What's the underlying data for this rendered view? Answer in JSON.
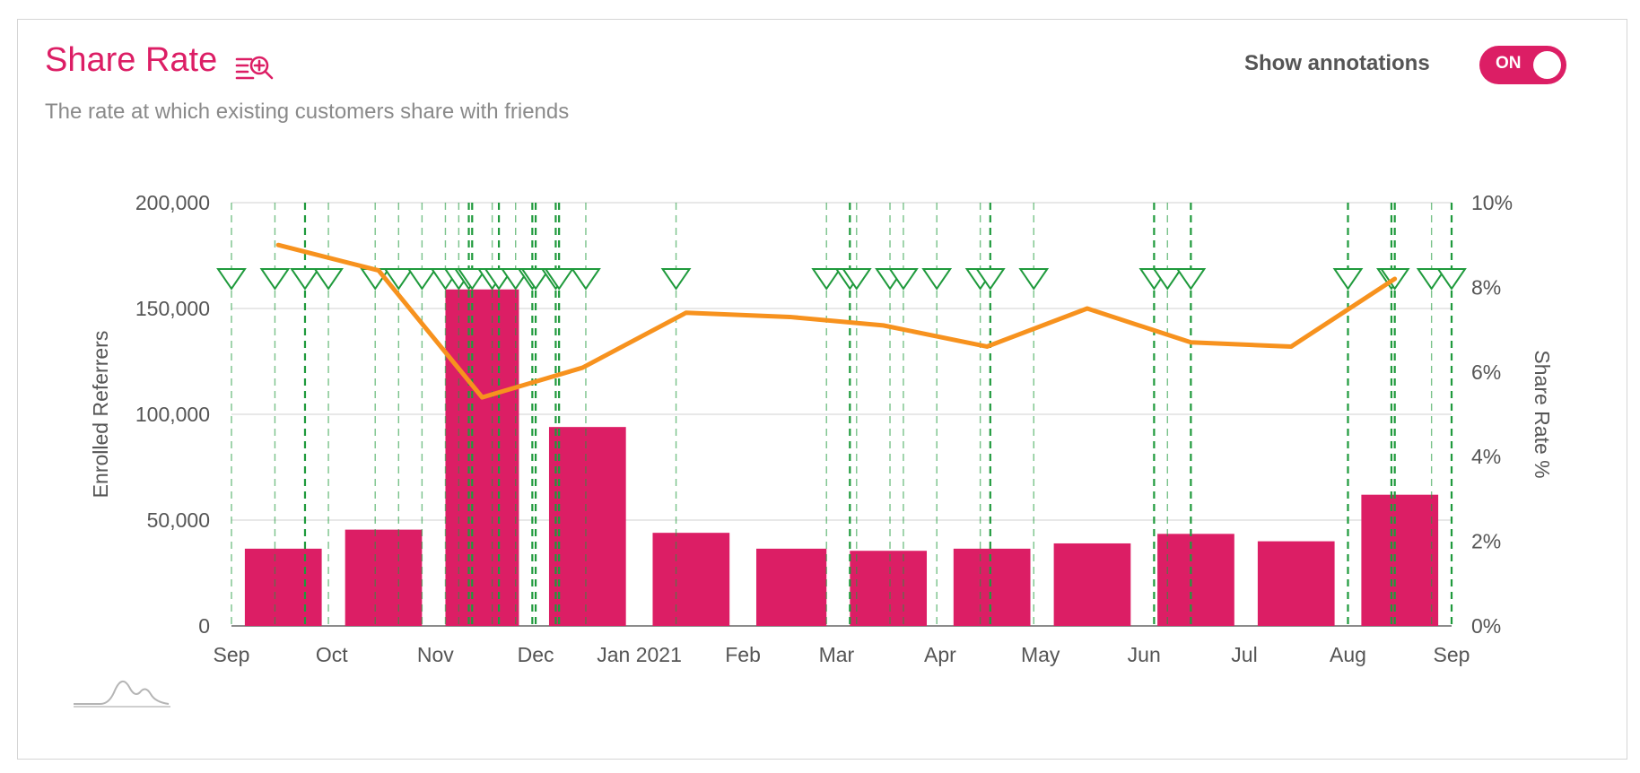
{
  "header": {
    "title": "Share Rate",
    "title_icon": "list-zoom-icon",
    "subtitle": "The rate at which existing customers share with friends",
    "annotations_label": "Show annotations",
    "annotations_toggle": "ON",
    "annotations_on": true
  },
  "colors": {
    "bar": "#dc1e65",
    "line": "#f7921e",
    "annotation": "#1f9a3c",
    "grid": "#d9d9d9",
    "accent": "#dc1e65"
  },
  "footer_icon": "chart-logo-icon",
  "chart_data": {
    "type": "bar",
    "title": "Share Rate",
    "subtitle": "The rate at which existing customers share with friends",
    "x_ticks": [
      "Sep",
      "Oct",
      "Nov",
      "Dec",
      "Jan 2021",
      "Feb",
      "Mar",
      "Apr",
      "May",
      "Jun",
      "Jul",
      "Aug",
      "Sep"
    ],
    "x_tick_dates": [
      "2020-09-01",
      "2020-10-01",
      "2020-11-01",
      "2020-12-01",
      "2021-01-01",
      "2021-02-01",
      "2021-03-01",
      "2021-04-01",
      "2021-05-01",
      "2021-06-01",
      "2021-07-01",
      "2021-08-01",
      "2021-09-01"
    ],
    "y_left": {
      "label": "Enrolled Referrers",
      "range": [
        0,
        200000
      ],
      "ticks": [
        "0",
        "50,000",
        "100,000",
        "150,000",
        "200,000"
      ]
    },
    "y_right": {
      "label": "Share Rate %",
      "range": [
        0,
        10
      ],
      "ticks": [
        "0%",
        "2%",
        "4%",
        "6%",
        "8%",
        "10%"
      ]
    },
    "grid": true,
    "series": [
      {
        "name": "Enrolled Referrers",
        "type": "bar",
        "axis": "left",
        "bars": [
          {
            "start": "2020-09-05",
            "end": "2020-09-28",
            "value": 36500
          },
          {
            "start": "2020-10-05",
            "end": "2020-10-28",
            "value": 45500
          },
          {
            "start": "2020-11-04",
            "end": "2020-11-26",
            "value": 159000
          },
          {
            "start": "2020-12-05",
            "end": "2020-12-28",
            "value": 94000
          },
          {
            "start": "2021-01-05",
            "end": "2021-01-28",
            "value": 44000
          },
          {
            "start": "2021-02-05",
            "end": "2021-02-26",
            "value": 36500
          },
          {
            "start": "2021-03-05",
            "end": "2021-03-28",
            "value": 35500
          },
          {
            "start": "2021-04-05",
            "end": "2021-04-28",
            "value": 36500
          },
          {
            "start": "2021-05-05",
            "end": "2021-05-28",
            "value": 39000
          },
          {
            "start": "2021-06-05",
            "end": "2021-06-28",
            "value": 43500
          },
          {
            "start": "2021-07-05",
            "end": "2021-07-28",
            "value": 40000
          },
          {
            "start": "2021-08-05",
            "end": "2021-08-28",
            "value": 62000
          }
        ]
      },
      {
        "name": "Share Rate %",
        "type": "line",
        "axis": "right",
        "points": [
          {
            "x": "2020-09-15",
            "y": 9.0
          },
          {
            "x": "2020-10-15",
            "y": 8.4
          },
          {
            "x": "2020-11-15",
            "y": 5.4
          },
          {
            "x": "2020-12-15",
            "y": 6.1
          },
          {
            "x": "2021-01-15",
            "y": 7.4
          },
          {
            "x": "2021-02-15",
            "y": 7.3
          },
          {
            "x": "2021-03-15",
            "y": 7.1
          },
          {
            "x": "2021-04-15",
            "y": 6.6
          },
          {
            "x": "2021-05-15",
            "y": 7.5
          },
          {
            "x": "2021-06-15",
            "y": 6.7
          },
          {
            "x": "2021-07-15",
            "y": 6.6
          },
          {
            "x": "2021-08-15",
            "y": 8.2
          }
        ]
      }
    ],
    "annotations": [
      {
        "date": "2020-09-01",
        "weight": "light"
      },
      {
        "date": "2020-09-14",
        "weight": "light"
      },
      {
        "date": "2020-09-23",
        "weight": "dark"
      },
      {
        "date": "2020-09-30",
        "weight": "light"
      },
      {
        "date": "2020-10-14",
        "weight": "light"
      },
      {
        "date": "2020-10-21",
        "weight": "light"
      },
      {
        "date": "2020-10-28",
        "weight": "light"
      },
      {
        "date": "2020-11-04",
        "weight": "light"
      },
      {
        "date": "2020-11-08",
        "weight": "light"
      },
      {
        "date": "2020-11-11",
        "weight": "dark"
      },
      {
        "date": "2020-11-12",
        "weight": "dark"
      },
      {
        "date": "2020-11-18",
        "weight": "light"
      },
      {
        "date": "2020-11-20",
        "weight": "dark"
      },
      {
        "date": "2020-11-25",
        "weight": "light"
      },
      {
        "date": "2020-11-30",
        "weight": "dark"
      },
      {
        "date": "2020-12-01",
        "weight": "dark"
      },
      {
        "date": "2020-12-07",
        "weight": "dark"
      },
      {
        "date": "2020-12-08",
        "weight": "dark"
      },
      {
        "date": "2020-12-16",
        "weight": "light"
      },
      {
        "date": "2021-01-12",
        "weight": "light"
      },
      {
        "date": "2021-02-26",
        "weight": "light"
      },
      {
        "date": "2021-03-05",
        "weight": "dark"
      },
      {
        "date": "2021-03-07",
        "weight": "light"
      },
      {
        "date": "2021-03-17",
        "weight": "light"
      },
      {
        "date": "2021-03-21",
        "weight": "light"
      },
      {
        "date": "2021-03-31",
        "weight": "light"
      },
      {
        "date": "2021-04-13",
        "weight": "light"
      },
      {
        "date": "2021-04-16",
        "weight": "dark"
      },
      {
        "date": "2021-04-29",
        "weight": "light"
      },
      {
        "date": "2021-06-04",
        "weight": "dark"
      },
      {
        "date": "2021-06-08",
        "weight": "light"
      },
      {
        "date": "2021-06-15",
        "weight": "dark"
      },
      {
        "date": "2021-08-01",
        "weight": "dark"
      },
      {
        "date": "2021-08-14",
        "weight": "dark"
      },
      {
        "date": "2021-08-15",
        "weight": "dark"
      },
      {
        "date": "2021-08-26",
        "weight": "light"
      },
      {
        "date": "2021-09-01",
        "weight": "dark"
      }
    ]
  }
}
